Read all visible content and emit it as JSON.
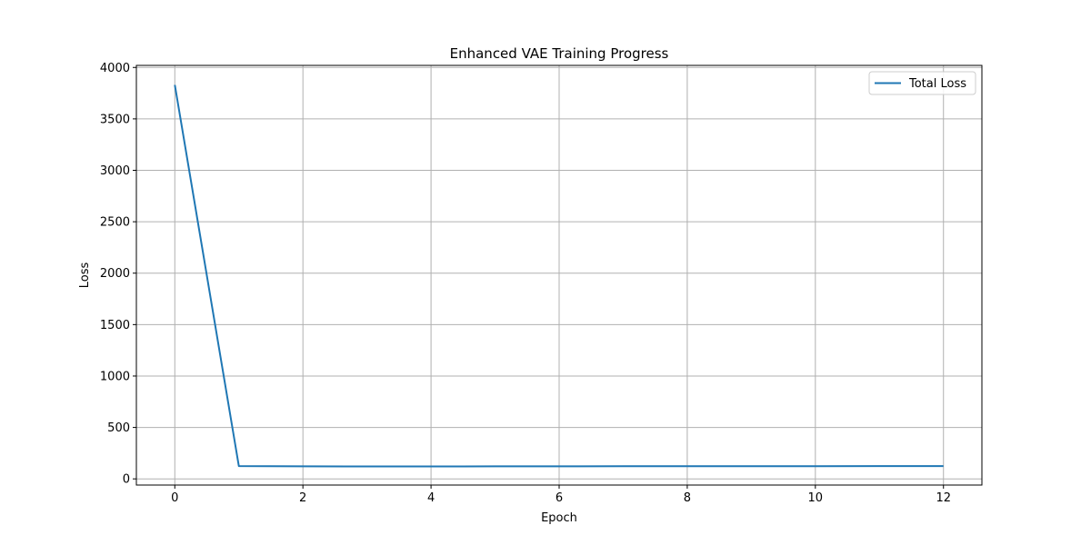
{
  "chart_data": {
    "type": "line",
    "title": "Enhanced VAE Training Progress",
    "xlabel": "Epoch",
    "ylabel": "Loss",
    "xlim": [
      -0.6,
      12.6
    ],
    "ylim": [
      -60,
      4020
    ],
    "x_ticks": [
      0,
      2,
      4,
      6,
      8,
      10,
      12
    ],
    "y_ticks": [
      0,
      500,
      1000,
      1500,
      2000,
      2500,
      3000,
      3500,
      4000
    ],
    "grid": true,
    "legend_position": "top-right",
    "series": [
      {
        "name": "Total Loss",
        "color": "#1f77b4",
        "x": [
          0,
          1,
          2,
          3,
          4,
          5,
          6,
          7,
          8,
          9,
          10,
          11,
          12
        ],
        "values": [
          3830,
          125,
          122,
          121,
          121,
          122,
          122,
          123,
          123,
          124,
          124,
          125,
          125
        ]
      }
    ]
  }
}
